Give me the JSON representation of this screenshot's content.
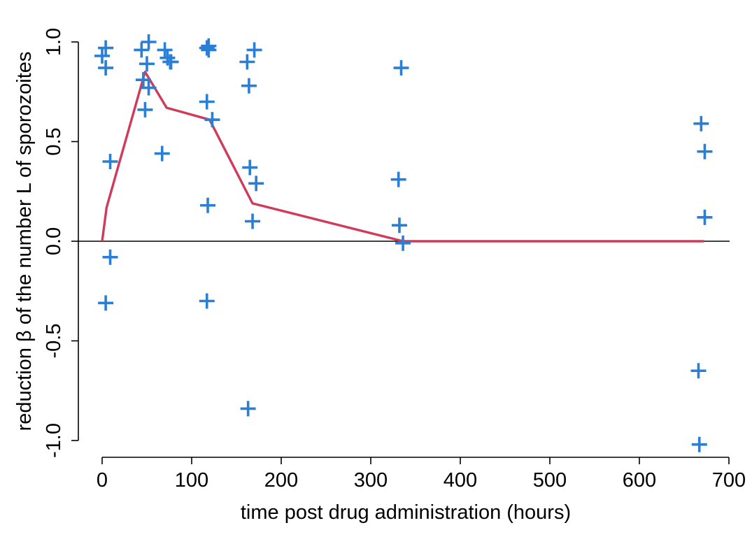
{
  "chart_data": {
    "type": "scatter",
    "title": "",
    "xlabel": "time post drug administration (hours)",
    "ylabel": "reduction β of the number L of sporozoites",
    "xlim": [
      0,
      700
    ],
    "ylim": [
      -1.0,
      1.0
    ],
    "x_ticks": [
      0,
      100,
      200,
      300,
      400,
      500,
      600,
      700
    ],
    "x_tick_labels": [
      "0",
      "100",
      "200",
      "300",
      "400",
      "500",
      "600",
      "700"
    ],
    "y_ticks": [
      -1.0,
      -0.5,
      0.0,
      0.5,
      1.0
    ],
    "y_tick_labels": [
      "-1.0",
      "-0.5",
      "0.0",
      "0.5",
      "1.0"
    ],
    "reference_line_y": 0.0,
    "grid": false,
    "colors": {
      "points": "#2a7fd4",
      "line": "#d13b5a"
    },
    "series": [
      {
        "type": "scatter",
        "marker": "plus",
        "points": [
          {
            "x": 0,
            "y": 0.93
          },
          {
            "x": 4,
            "y": 0.97
          },
          {
            "x": 4,
            "y": 0.87
          },
          {
            "x": 4,
            "y": -0.31
          },
          {
            "x": 9,
            "y": -0.08
          },
          {
            "x": 9,
            "y": 0.4
          },
          {
            "x": 44,
            "y": 0.96
          },
          {
            "x": 46,
            "y": 0.81
          },
          {
            "x": 48,
            "y": 0.66
          },
          {
            "x": 50,
            "y": 0.89
          },
          {
            "x": 52,
            "y": 1.0
          },
          {
            "x": 52,
            "y": 0.77
          },
          {
            "x": 67,
            "y": 0.44
          },
          {
            "x": 70,
            "y": 0.96
          },
          {
            "x": 73,
            "y": 0.92
          },
          {
            "x": 76,
            "y": 0.9
          },
          {
            "x": 77,
            "y": 0.9
          },
          {
            "x": 117,
            "y": 0.97
          },
          {
            "x": 119,
            "y": 0.98
          },
          {
            "x": 119,
            "y": 0.96
          },
          {
            "x": 117,
            "y": 0.7
          },
          {
            "x": 118,
            "y": 0.18
          },
          {
            "x": 117,
            "y": -0.3
          },
          {
            "x": 123,
            "y": 0.61
          },
          {
            "x": 162,
            "y": 0.9
          },
          {
            "x": 164,
            "y": 0.78
          },
          {
            "x": 165,
            "y": 0.37
          },
          {
            "x": 168,
            "y": 0.1
          },
          {
            "x": 170,
            "y": 0.96
          },
          {
            "x": 172,
            "y": 0.29
          },
          {
            "x": 163,
            "y": -0.84
          },
          {
            "x": 334,
            "y": 0.87
          },
          {
            "x": 331,
            "y": 0.31
          },
          {
            "x": 332,
            "y": 0.08
          },
          {
            "x": 336,
            "y": -0.01
          },
          {
            "x": 669,
            "y": 0.59
          },
          {
            "x": 673,
            "y": 0.45
          },
          {
            "x": 673,
            "y": 0.12
          },
          {
            "x": 666,
            "y": -0.65
          },
          {
            "x": 667,
            "y": -1.02
          }
        ]
      },
      {
        "type": "line",
        "points": [
          {
            "x": 0,
            "y": 0.0
          },
          {
            "x": 5,
            "y": 0.17
          },
          {
            "x": 48,
            "y": 0.85
          },
          {
            "x": 72,
            "y": 0.67
          },
          {
            "x": 120,
            "y": 0.61
          },
          {
            "x": 168,
            "y": 0.19
          },
          {
            "x": 336,
            "y": 0.0
          },
          {
            "x": 672,
            "y": 0.0
          }
        ]
      }
    ]
  }
}
